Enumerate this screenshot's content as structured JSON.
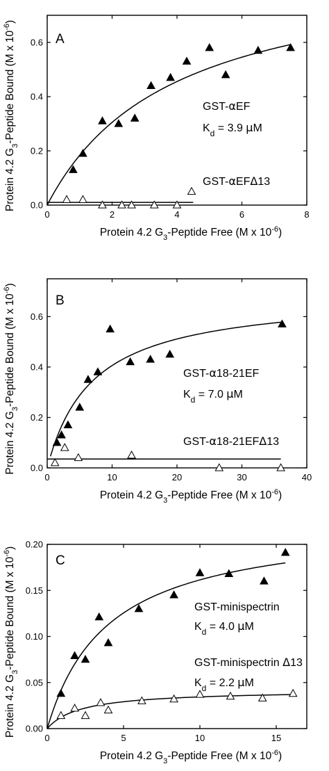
{
  "chart_data": [
    {
      "type": "scatter",
      "panel": "A",
      "xlabel": {
        "pre": "Protein 4.2 G",
        "sub": "3",
        "post": "-Peptide Free (M x 10",
        "sup": "-6",
        "end": ")"
      },
      "ylabel": {
        "pre": "Protein 4.2 G",
        "sub": "3",
        "post": "-Peptide Bound (M x 10",
        "sup": "-6",
        "end": ")"
      },
      "xlim": [
        0,
        8
      ],
      "ylim": [
        0,
        0.7
      ],
      "xticks": [
        0,
        2,
        4,
        6,
        8
      ],
      "yticks": [
        0.0,
        0.2,
        0.4,
        0.6
      ],
      "xtick_labels": [
        "0",
        "2",
        "4",
        "6",
        "8"
      ],
      "ytick_labels": [
        "0.0",
        "0.2",
        "0.4",
        "0.6"
      ],
      "annotations": [
        {
          "parts": [
            {
              "t": "GST-"
            },
            {
              "t": "α",
              "greek": true
            },
            {
              "t": "EF"
            }
          ]
        },
        {
          "parts": [
            {
              "t": "K"
            },
            {
              "t": "d",
              "sub": true
            },
            {
              "t": " = 3.9 "
            },
            {
              "t": "μ",
              "greek": true
            },
            {
              "t": "M"
            }
          ]
        },
        {
          "parts": [
            {
              "t": "GST-"
            },
            {
              "t": "α",
              "greek": true
            },
            {
              "t": "EF"
            },
            {
              "t": "Δ",
              "greek": true
            },
            {
              "t": "13"
            }
          ]
        }
      ],
      "series": [
        {
          "marker": "filled-triangle",
          "x": [
            0.8,
            1.1,
            1.7,
            2.2,
            2.7,
            3.2,
            3.8,
            4.3,
            5.0,
            5.5,
            6.5,
            7.5
          ],
          "y": [
            0.13,
            0.19,
            0.31,
            0.3,
            0.32,
            0.44,
            0.47,
            0.53,
            0.58,
            0.48,
            0.57,
            0.58
          ],
          "fit": {
            "type": "hyperbola",
            "bmax": 0.9,
            "kd": 3.9,
            "x_start": 0,
            "x_end": 7.5
          }
        },
        {
          "marker": "open-triangle",
          "x": [
            0.6,
            1.1,
            1.7,
            2.3,
            2.6,
            3.3,
            4.0,
            4.45
          ],
          "y": [
            0.02,
            0.02,
            0.0,
            0.0,
            0.0,
            0.0,
            0.0,
            0.05
          ],
          "fit": {
            "type": "constant",
            "value": 0.01,
            "x_start": 0,
            "x_end": 4.5
          }
        }
      ]
    },
    {
      "type": "scatter",
      "panel": "B",
      "xlabel": {
        "pre": "Protein 4.2 G",
        "sub": "3",
        "post": "-Peptide Free (M x 10",
        "sup": "-6",
        "end": ")"
      },
      "ylabel": {
        "pre": "Protein 4.2 G",
        "sub": "3",
        "post": "-Peptide Bound (M x 10",
        "sup": "-6",
        "end": ")"
      },
      "xlim": [
        0,
        40
      ],
      "ylim": [
        0,
        0.75
      ],
      "xticks": [
        0,
        10,
        20,
        30,
        40
      ],
      "yticks": [
        0.0,
        0.2,
        0.4,
        0.6
      ],
      "xtick_labels": [
        "0",
        "10",
        "20",
        "30",
        "40"
      ],
      "ytick_labels": [
        "0.0",
        "0.2",
        "0.4",
        "0.6"
      ],
      "annotations": [
        {
          "parts": [
            {
              "t": "GST-"
            },
            {
              "t": "α",
              "greek": true
            },
            {
              "t": "18-21EF"
            }
          ]
        },
        {
          "parts": [
            {
              "t": "K"
            },
            {
              "t": "d",
              "sub": true
            },
            {
              "t": " = 7.0 "
            },
            {
              "t": "μ",
              "greek": true
            },
            {
              "t": "M"
            }
          ]
        },
        {
          "parts": [
            {
              "t": "GST-"
            },
            {
              "t": "α",
              "greek": true
            },
            {
              "t": "18-21EF"
            },
            {
              "t": "Δ",
              "greek": true
            },
            {
              "t": "13"
            }
          ]
        }
      ],
      "series": [
        {
          "marker": "filled-triangle",
          "x": [
            1.5,
            2.2,
            3.2,
            5.0,
            6.3,
            7.8,
            9.7,
            12.8,
            15.9,
            18.9,
            36.2
          ],
          "y": [
            0.1,
            0.13,
            0.17,
            0.24,
            0.35,
            0.38,
            0.55,
            0.42,
            0.43,
            0.45,
            0.57
          ],
          "fit": {
            "type": "hyperbola",
            "bmax": 0.69,
            "kd": 7.0,
            "x_start": 0.5,
            "x_end": 36
          }
        },
        {
          "marker": "open-triangle",
          "x": [
            1.2,
            2.7,
            4.8,
            13.0,
            26.5,
            36.0
          ],
          "y": [
            0.02,
            0.08,
            0.04,
            0.05,
            0.0,
            0.0
          ],
          "fit": {
            "type": "constant",
            "value": 0.035,
            "x_start": 0,
            "x_end": 36
          }
        }
      ]
    },
    {
      "type": "scatter",
      "panel": "C",
      "xlabel": {
        "pre": "Protein 4.2 G",
        "sub": "3",
        "post": "-Peptide Free (M x 10",
        "sup": "-6",
        "end": ")"
      },
      "ylabel": {
        "pre": "Protein 4.2 G",
        "sub": "3",
        "post": "-Peptide Bound (M x 10",
        "sup": "-6",
        "end": ")"
      },
      "xlim": [
        0,
        17
      ],
      "ylim": [
        0,
        0.2
      ],
      "xticks": [
        0,
        5,
        10,
        15
      ],
      "yticks": [
        0.0,
        0.05,
        0.1,
        0.15,
        0.2
      ],
      "xtick_labels": [
        "0",
        "5",
        "10",
        "15"
      ],
      "ytick_labels": [
        "0.00",
        "0.05",
        "0.10",
        "0.15",
        "0.20"
      ],
      "annotations": [
        {
          "parts": [
            {
              "t": "GST-minispectrin"
            }
          ]
        },
        {
          "parts": [
            {
              "t": "K"
            },
            {
              "t": "d",
              "sub": true
            },
            {
              "t": " = 4.0 "
            },
            {
              "t": "μ",
              "greek": true
            },
            {
              "t": "M"
            }
          ]
        },
        {
          "parts": [
            {
              "t": "GST-minispectrin "
            },
            {
              "t": "Δ",
              "greek": true
            },
            {
              "t": "13"
            }
          ]
        },
        {
          "parts": [
            {
              "t": "K"
            },
            {
              "t": "d",
              "sub": true
            },
            {
              "t": " = 2.2 "
            },
            {
              "t": "μ",
              "greek": true
            },
            {
              "t": "M"
            }
          ]
        }
      ],
      "series": [
        {
          "marker": "filled-triangle",
          "x": [
            0.9,
            1.8,
            2.5,
            3.4,
            4.0,
            6.0,
            8.3,
            10.0,
            11.9,
            14.2,
            15.6
          ],
          "y": [
            0.038,
            0.079,
            0.075,
            0.121,
            0.093,
            0.13,
            0.145,
            0.169,
            0.168,
            0.16,
            0.191
          ],
          "fit": {
            "type": "hyperbola",
            "bmax": 0.226,
            "kd": 4.0,
            "x_start": 0,
            "x_end": 15.6
          }
        },
        {
          "marker": "open-triangle",
          "x": [
            0.9,
            1.8,
            2.5,
            3.5,
            4.0,
            6.2,
            8.3,
            10.0,
            12.0,
            14.1,
            16.1
          ],
          "y": [
            0.014,
            0.022,
            0.014,
            0.028,
            0.02,
            0.03,
            0.032,
            0.037,
            0.035,
            0.033,
            0.038
          ],
          "fit": {
            "type": "hyperbola",
            "bmax": 0.042,
            "kd": 2.2,
            "x_start": 0,
            "x_end": 16
          }
        }
      ]
    }
  ]
}
